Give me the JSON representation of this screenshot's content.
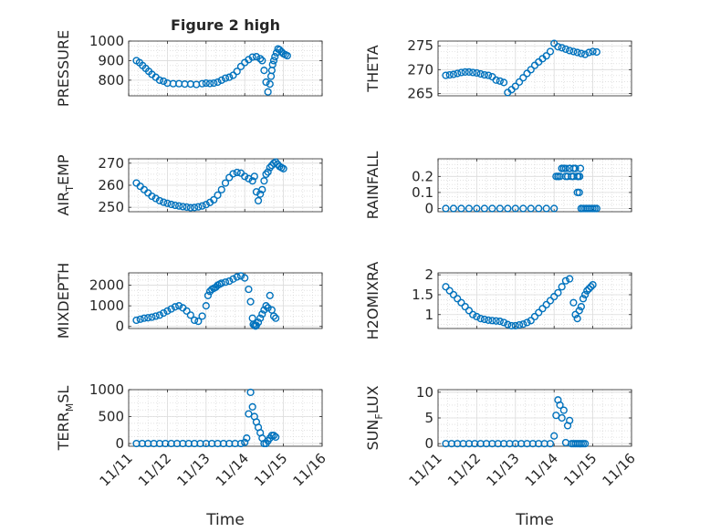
{
  "figure": {
    "title": "Figure 2 high",
    "marker_color": "#0072BD"
  },
  "x_ticks": [
    "11/11",
    "11/12",
    "11/13",
    "11/14",
    "11/15",
    "11/16"
  ],
  "x_label": "Time",
  "chart_data": [
    {
      "type": "scatter",
      "ylabel": "PRESSURE",
      "xlim": [
        0,
        5
      ],
      "ylim": [
        720,
        1000
      ],
      "yticks": [
        800,
        900,
        1000
      ],
      "ytick_labels": [
        "800",
        "900",
        "1000"
      ],
      "x": [
        0.2,
        0.28,
        0.36,
        0.44,
        0.52,
        0.6,
        0.7,
        0.8,
        0.9,
        1.0,
        1.15,
        1.3,
        1.45,
        1.6,
        1.75,
        1.9,
        2.0,
        2.1,
        2.2,
        2.3,
        2.4,
        2.5,
        2.6,
        2.7,
        2.8,
        2.9,
        3.0,
        3.1,
        3.2,
        3.3,
        3.4,
        3.45,
        3.5,
        3.55,
        3.6,
        3.65,
        3.68,
        3.7,
        3.72,
        3.75,
        3.78,
        3.82,
        3.86,
        3.9,
        3.95,
        4.0,
        4.05,
        4.1
      ],
      "y": [
        900,
        890,
        875,
        860,
        845,
        830,
        815,
        800,
        795,
        785,
        782,
        782,
        780,
        780,
        778,
        782,
        785,
        783,
        785,
        790,
        800,
        810,
        815,
        825,
        845,
        870,
        890,
        905,
        918,
        920,
        910,
        900,
        850,
        790,
        740,
        780,
        820,
        850,
        880,
        900,
        920,
        940,
        960,
        955,
        945,
        935,
        930,
        925
      ],
      "title": "Figure 2 high"
    },
    {
      "type": "scatter",
      "ylabel": "THETA",
      "xlim": [
        0,
        5
      ],
      "ylim": [
        264.5,
        276
      ],
      "yticks": [
        265,
        270,
        275
      ],
      "ytick_labels": [
        "265",
        "270",
        "275"
      ],
      "x": [
        0.2,
        0.3,
        0.4,
        0.5,
        0.6,
        0.7,
        0.8,
        0.9,
        1.0,
        1.1,
        1.2,
        1.3,
        1.4,
        1.5,
        1.6,
        1.7,
        1.8,
        1.9,
        2.0,
        2.1,
        2.2,
        2.3,
        2.4,
        2.5,
        2.6,
        2.7,
        2.8,
        2.9,
        3.0,
        3.1,
        3.2,
        3.3,
        3.4,
        3.5,
        3.6,
        3.7,
        3.8,
        3.9,
        4.0,
        4.1
      ],
      "y": [
        268.8,
        268.9,
        269.0,
        269.2,
        269.4,
        269.5,
        269.5,
        269.4,
        269.3,
        269.1,
        268.9,
        268.8,
        268.5,
        267.8,
        267.6,
        267.3,
        265.2,
        265.8,
        266.5,
        267.4,
        268.3,
        269.2,
        270.0,
        270.9,
        271.6,
        272.3,
        272.9,
        273.8,
        275.5,
        274.8,
        274.6,
        274.3,
        274.0,
        273.8,
        273.6,
        273.4,
        273.2,
        273.6,
        273.8,
        273.7
      ],
      "title": ""
    },
    {
      "type": "scatter",
      "ylabel": "AIR_TEMP",
      "xlim": [
        0,
        5
      ],
      "ylim": [
        248,
        272
      ],
      "yticks": [
        250,
        260,
        270
      ],
      "ytick_labels": [
        "250",
        "260",
        "270"
      ],
      "x": [
        0.2,
        0.3,
        0.4,
        0.5,
        0.6,
        0.7,
        0.8,
        0.9,
        1.0,
        1.1,
        1.2,
        1.3,
        1.4,
        1.5,
        1.6,
        1.7,
        1.8,
        1.9,
        2.0,
        2.1,
        2.2,
        2.3,
        2.4,
        2.5,
        2.6,
        2.7,
        2.8,
        2.9,
        3.0,
        3.1,
        3.2,
        3.25,
        3.3,
        3.35,
        3.4,
        3.45,
        3.5,
        3.55,
        3.6,
        3.65,
        3.7,
        3.75,
        3.8,
        3.85,
        3.9,
        3.95,
        4.0
      ],
      "y": [
        261,
        259.5,
        258,
        256.5,
        255,
        254,
        253,
        252.3,
        251.8,
        251.3,
        250.9,
        250.6,
        250.3,
        250.1,
        249.8,
        249.9,
        250.2,
        250.6,
        251.2,
        252.2,
        253.4,
        255.5,
        258,
        261,
        263.5,
        265.2,
        265.8,
        265.5,
        264,
        263,
        262,
        264,
        257,
        253,
        256,
        258,
        262,
        265,
        266,
        268,
        269,
        270,
        270.5,
        269.5,
        268.5,
        268,
        267.5
      ],
      "title": ""
    },
    {
      "type": "scatter",
      "ylabel": "RAINFALL",
      "xlim": [
        0,
        5
      ],
      "ylim": [
        -0.02,
        0.31
      ],
      "yticks": [
        0,
        0.1,
        0.2
      ],
      "ytick_labels": [
        "0",
        "0.1",
        "0.2"
      ],
      "x": [
        0.2,
        0.4,
        0.6,
        0.8,
        1.0,
        1.2,
        1.4,
        1.6,
        1.8,
        2.0,
        2.2,
        2.4,
        2.6,
        2.8,
        3.0,
        3.05,
        3.1,
        3.15,
        3.2,
        3.25,
        3.3,
        3.35,
        3.4,
        3.45,
        3.5,
        3.55,
        3.6,
        3.65,
        3.7,
        3.75,
        3.8,
        3.85,
        3.9,
        3.95,
        4.0,
        4.05,
        4.1,
        3.6,
        3.62,
        3.66,
        3.68,
        3.1,
        3.2,
        3.3,
        3.4,
        3.5,
        3.7
      ],
      "y": [
        0,
        0,
        0,
        0,
        0,
        0,
        0,
        0,
        0,
        0,
        0,
        0,
        0,
        0,
        0,
        0.2,
        0.2,
        0.2,
        0.25,
        0.25,
        0.2,
        0.2,
        0.25,
        0.2,
        0.2,
        0.25,
        0.1,
        0.1,
        0,
        0,
        0,
        0,
        0,
        0,
        0,
        0,
        0,
        0.2,
        0.2,
        0.2,
        0.25,
        0.2,
        0.25,
        0.25,
        0.25,
        0.25,
        0
      ],
      "title": ""
    },
    {
      "type": "scatter",
      "ylabel": "MIXDEPTH",
      "xlim": [
        0,
        5
      ],
      "ylim": [
        -100,
        2600
      ],
      "yticks": [
        0,
        1000,
        2000
      ],
      "ytick_labels": [
        "0",
        "1000",
        "2000"
      ],
      "x": [
        0.2,
        0.3,
        0.4,
        0.5,
        0.6,
        0.7,
        0.8,
        0.9,
        1.0,
        1.1,
        1.2,
        1.3,
        1.4,
        1.5,
        1.6,
        1.7,
        1.8,
        1.9,
        2.0,
        2.05,
        2.1,
        2.15,
        2.2,
        2.25,
        2.3,
        2.35,
        2.4,
        2.5,
        2.6,
        2.7,
        2.8,
        2.9,
        3.0,
        3.1,
        3.15,
        3.2,
        3.22,
        3.25,
        3.28,
        3.3,
        3.35,
        3.4,
        3.45,
        3.5,
        3.55,
        3.6,
        3.65,
        3.7,
        3.75,
        3.8
      ],
      "y": [
        300,
        350,
        400,
        420,
        450,
        500,
        550,
        650,
        750,
        850,
        950,
        1000,
        900,
        750,
        550,
        300,
        250,
        500,
        1000,
        1500,
        1700,
        1800,
        1850,
        1900,
        2000,
        2050,
        2100,
        2150,
        2200,
        2300,
        2400,
        2450,
        2350,
        1800,
        1200,
        400,
        100,
        50,
        20,
        50,
        200,
        400,
        600,
        800,
        1000,
        900,
        1500,
        800,
        500,
        400
      ],
      "title": ""
    },
    {
      "type": "scatter",
      "ylabel": "H2OMIXRA",
      "xlim": [
        0,
        5
      ],
      "ylim": [
        0.65,
        2.05
      ],
      "yticks": [
        1,
        1.5,
        2
      ],
      "ytick_labels": [
        "1",
        "1.5",
        "2"
      ],
      "x": [
        0.2,
        0.3,
        0.4,
        0.5,
        0.6,
        0.7,
        0.8,
        0.9,
        1.0,
        1.1,
        1.2,
        1.3,
        1.4,
        1.5,
        1.6,
        1.7,
        1.8,
        1.9,
        2.0,
        2.1,
        2.2,
        2.3,
        2.4,
        2.5,
        2.6,
        2.7,
        2.8,
        2.9,
        3.0,
        3.1,
        3.2,
        3.3,
        3.4,
        3.5,
        3.55,
        3.6,
        3.65,
        3.7,
        3.75,
        3.8,
        3.85,
        3.9,
        3.95,
        4.0
      ],
      "y": [
        1.7,
        1.6,
        1.5,
        1.4,
        1.3,
        1.2,
        1.1,
        1.0,
        0.95,
        0.9,
        0.88,
        0.86,
        0.85,
        0.84,
        0.83,
        0.8,
        0.75,
        0.72,
        0.72,
        0.74,
        0.76,
        0.8,
        0.85,
        0.95,
        1.05,
        1.15,
        1.25,
        1.35,
        1.45,
        1.55,
        1.7,
        1.85,
        1.9,
        1.3,
        1.0,
        0.9,
        1.1,
        1.2,
        1.4,
        1.5,
        1.6,
        1.65,
        1.7,
        1.75
      ],
      "title": ""
    },
    {
      "type": "scatter",
      "ylabel": "TERR_MSL",
      "xlim": [
        0,
        5
      ],
      "ylim": [
        -50,
        1000
      ],
      "yticks": [
        0,
        500,
        1000
      ],
      "ytick_labels": [
        "0",
        "500",
        "1000"
      ],
      "x": [
        0.2,
        0.35,
        0.5,
        0.65,
        0.8,
        0.95,
        1.1,
        1.25,
        1.4,
        1.55,
        1.7,
        1.85,
        2.0,
        2.15,
        2.3,
        2.45,
        2.6,
        2.75,
        2.9,
        3.0,
        3.05,
        3.1,
        3.15,
        3.2,
        3.25,
        3.3,
        3.35,
        3.4,
        3.45,
        3.5,
        3.55,
        3.6,
        3.65,
        3.7,
        3.75,
        3.8
      ],
      "y": [
        0,
        0,
        0,
        0,
        0,
        0,
        0,
        0,
        0,
        0,
        0,
        0,
        0,
        0,
        0,
        0,
        0,
        0,
        0,
        20,
        100,
        550,
        950,
        680,
        500,
        400,
        300,
        200,
        100,
        0,
        0,
        50,
        100,
        150,
        150,
        120
      ],
      "title": ""
    },
    {
      "type": "scatter",
      "ylabel": "SUN_FLUX",
      "xlim": [
        0,
        5
      ],
      "ylim": [
        -0.5,
        10.5
      ],
      "yticks": [
        0,
        5,
        10
      ],
      "ytick_labels": [
        "0",
        "5",
        "10"
      ],
      "x": [
        0.2,
        0.35,
        0.5,
        0.65,
        0.8,
        0.95,
        1.1,
        1.25,
        1.4,
        1.55,
        1.7,
        1.85,
        2.0,
        2.15,
        2.3,
        2.45,
        2.6,
        2.75,
        2.9,
        3.0,
        3.05,
        3.1,
        3.15,
        3.2,
        3.25,
        3.3,
        3.35,
        3.4,
        3.45,
        3.5,
        3.55,
        3.6,
        3.65,
        3.7,
        3.75,
        3.8
      ],
      "y": [
        0,
        0,
        0,
        0,
        0,
        0,
        0,
        0,
        0,
        0,
        0,
        0,
        0,
        0,
        0,
        0,
        0,
        0,
        0,
        1.5,
        5.5,
        8.5,
        7.5,
        5.0,
        6.5,
        0.2,
        3.5,
        4.5,
        0,
        0,
        0,
        0,
        0,
        0,
        0,
        0
      ],
      "title": ""
    }
  ]
}
